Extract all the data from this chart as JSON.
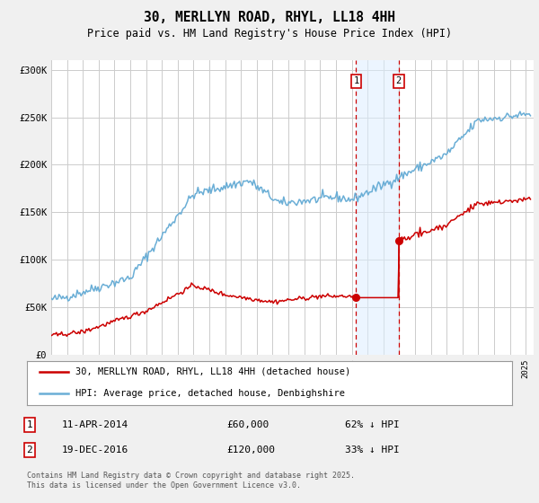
{
  "title": "30, MERLLYN ROAD, RHYL, LL18 4HH",
  "subtitle": "Price paid vs. HM Land Registry's House Price Index (HPI)",
  "ylabel_ticks": [
    "£0",
    "£50K",
    "£100K",
    "£150K",
    "£200K",
    "£250K",
    "£300K"
  ],
  "ytick_values": [
    0,
    50000,
    100000,
    150000,
    200000,
    250000,
    300000
  ],
  "ylim": [
    0,
    310000
  ],
  "xlim_start": 1995.0,
  "xlim_end": 2025.5,
  "hpi_color": "#6aaed6",
  "price_color": "#cc0000",
  "marker1_date": 2014.28,
  "marker2_date": 2016.97,
  "marker1_price": 60000,
  "marker2_price": 120000,
  "legend_label1": "30, MERLLYN ROAD, RHYL, LL18 4HH (detached house)",
  "legend_label2": "HPI: Average price, detached house, Denbighshire",
  "ann_date1": "11-APR-2014",
  "ann_price1": "£60,000",
  "ann_rel1": "62% ↓ HPI",
  "ann_date2": "19-DEC-2016",
  "ann_price2": "£120,000",
  "ann_rel2": "33% ↓ HPI",
  "footer": "Contains HM Land Registry data © Crown copyright and database right 2025.\nThis data is licensed under the Open Government Licence v3.0.",
  "bg_color": "#f0f0f0",
  "plot_bg_color": "#ffffff",
  "grid_color": "#cccccc",
  "highlight_fill": "#ddeeff",
  "highlight_alpha": 0.55,
  "title_fontsize": 10.5,
  "subtitle_fontsize": 8.5
}
